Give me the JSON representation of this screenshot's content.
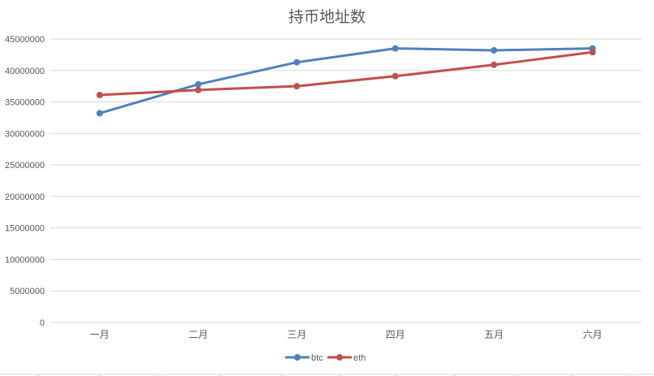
{
  "chart_data": {
    "type": "line",
    "title": "持币地址数",
    "xlabel": "",
    "ylabel": "",
    "categories": [
      "一月",
      "二月",
      "三月",
      "四月",
      "五月",
      "六月"
    ],
    "series": [
      {
        "name": "btc",
        "color": "#4F81BD",
        "values": [
          33200000,
          37800000,
          41300000,
          43500000,
          43200000,
          43500000
        ]
      },
      {
        "name": "eth",
        "color": "#C0504D",
        "values": [
          36100000,
          36900000,
          37500000,
          39100000,
          40900000,
          42900000
        ]
      }
    ],
    "ylim": [
      0,
      45000000
    ],
    "yticks": [
      "0",
      "5000000",
      "10000000",
      "15000000",
      "20000000",
      "25000000",
      "30000000",
      "35000000",
      "40000000",
      "45000000"
    ],
    "grid": true,
    "legend_position": "bottom"
  },
  "legend": {
    "btc": "btc",
    "eth": "eth"
  }
}
